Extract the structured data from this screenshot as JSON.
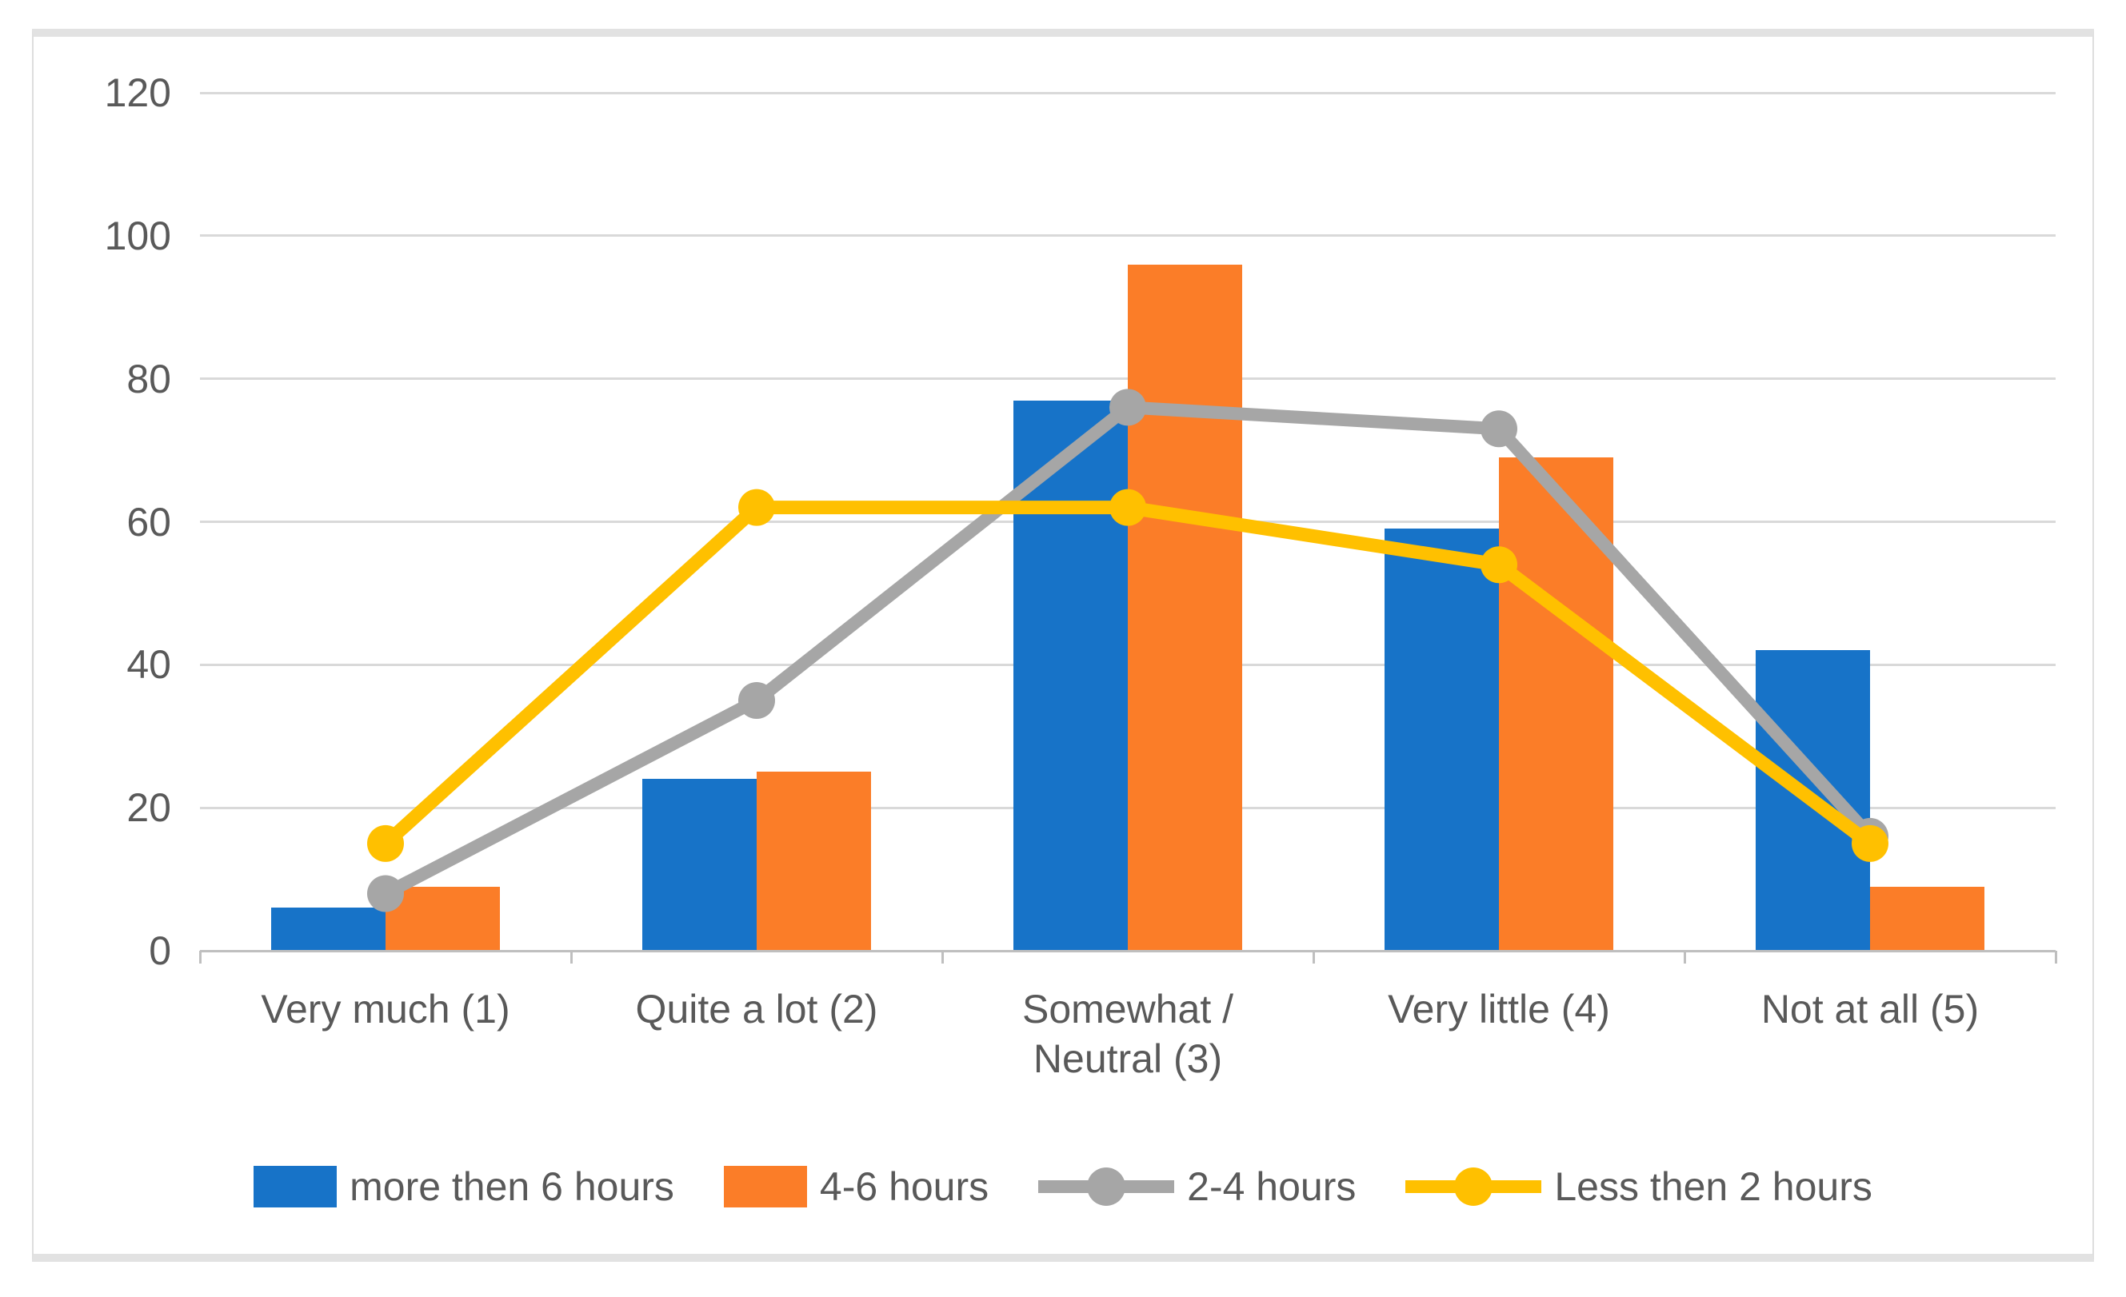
{
  "chart_data": {
    "type": "combo-bar-line",
    "categories": [
      "Very much (1)",
      "Quite a lot (2)",
      "Somewhat / Neutral (3)",
      "Very little (4)",
      "Not at all (5)"
    ],
    "category_label_lines": [
      [
        "Very much (1)"
      ],
      [
        "Quite a lot (2)"
      ],
      [
        "Somewhat /",
        "Neutral (3)"
      ],
      [
        "Very little (4)"
      ],
      [
        "Not at all (5)"
      ]
    ],
    "series": [
      {
        "name": "more then 6 hours",
        "type": "bar",
        "color": "#1773C8",
        "values": [
          6,
          24,
          77,
          59,
          42
        ]
      },
      {
        "name": "4-6 hours",
        "type": "bar",
        "color": "#FB7D28",
        "values": [
          9,
          25,
          96,
          69,
          9
        ]
      },
      {
        "name": "2-4 hours",
        "type": "line",
        "color": "#A6A6A6",
        "marker": "circle",
        "values": [
          8,
          35,
          76,
          73,
          16
        ]
      },
      {
        "name": "Less then 2 hours",
        "type": "line",
        "color": "#FFC000",
        "marker": "circle",
        "values": [
          15,
          62,
          62,
          54,
          15
        ]
      }
    ],
    "title": "",
    "xlabel": "",
    "ylabel": "",
    "ylim": [
      0,
      120
    ],
    "yticks": [
      0,
      20,
      40,
      60,
      80,
      100,
      120
    ],
    "grid": true,
    "legend_position": "bottom"
  },
  "style_colors": {
    "gridline": "#D9D9D9",
    "axis_line": "#BFBFBF",
    "tick_text": "#595959",
    "chart_border": "#E2E2E2",
    "background": "#FFFFFF"
  }
}
